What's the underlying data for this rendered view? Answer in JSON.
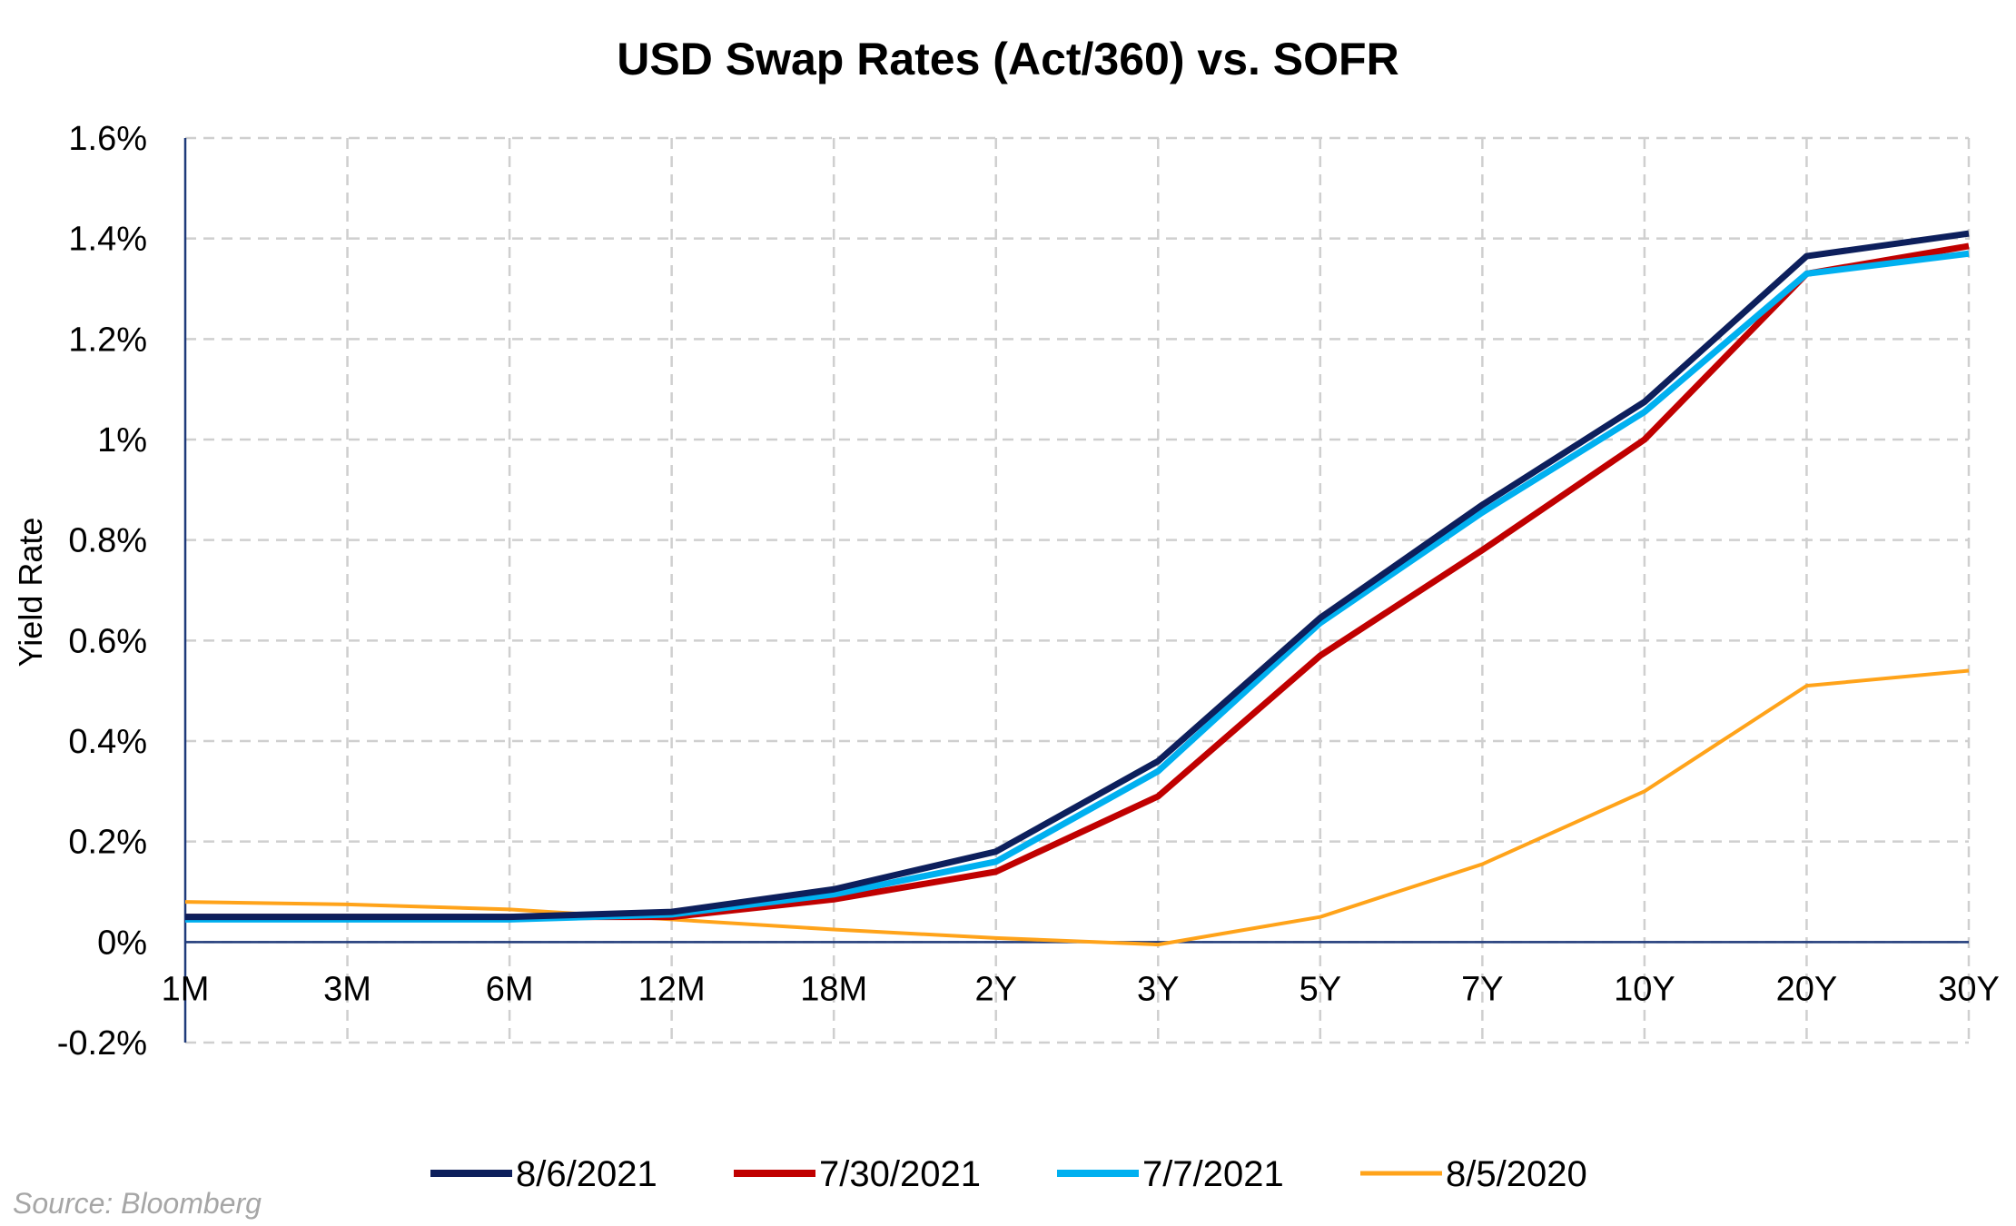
{
  "chart_data": {
    "type": "line",
    "title": "USD Swap Rates (Act/360) vs. SOFR",
    "xlabel": "",
    "ylabel": "Yield Rate",
    "categories": [
      "1M",
      "3M",
      "6M",
      "12M",
      "18M",
      "2Y",
      "3Y",
      "5Y",
      "7Y",
      "10Y",
      "20Y",
      "30Y"
    ],
    "ylim": [
      -0.2,
      1.6
    ],
    "yticks": [
      -0.2,
      0,
      0.2,
      0.4,
      0.6,
      0.8,
      1,
      1.2,
      1.4,
      1.6
    ],
    "ytick_labels": [
      "-0.2%",
      "0%",
      "0.2%",
      "0.4%",
      "0.6%",
      "0.8%",
      "1%",
      "1.2%",
      "1.4%",
      "1.6%"
    ],
    "grid": true,
    "legend_position": "bottom",
    "series": [
      {
        "name": "8/6/2021",
        "color": "#0d1f5c",
        "width": 7,
        "values": [
          0.05,
          0.05,
          0.05,
          0.06,
          0.105,
          0.18,
          0.36,
          0.645,
          0.87,
          1.075,
          1.365,
          1.41
        ]
      },
      {
        "name": "7/30/2021",
        "color": "#c00000",
        "width": 7,
        "values": [
          0.05,
          0.05,
          0.05,
          0.05,
          0.085,
          0.14,
          0.29,
          0.57,
          0.78,
          1.0,
          1.33,
          1.385
        ]
      },
      {
        "name": "7/7/2021",
        "color": "#00b0f0",
        "width": 7,
        "values": [
          0.045,
          0.045,
          0.045,
          0.055,
          0.095,
          0.16,
          0.34,
          0.635,
          0.855,
          1.055,
          1.33,
          1.37
        ]
      },
      {
        "name": "8/5/2020",
        "color": "#ffa31a",
        "width": 4,
        "values": [
          0.08,
          0.075,
          0.065,
          0.045,
          0.025,
          0.008,
          -0.005,
          0.05,
          0.155,
          0.3,
          0.51,
          0.54
        ]
      }
    ]
  },
  "source": "Source: Bloomberg"
}
